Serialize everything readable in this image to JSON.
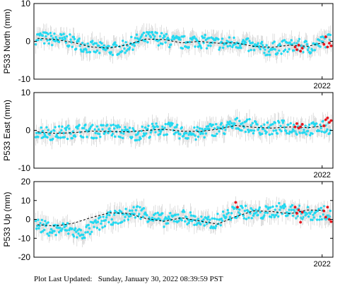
{
  "footer": {
    "label": "Plot Last Updated:",
    "value": "Sunday, January 30, 2022 08:39:59 PST"
  },
  "colors": {
    "points": "#22d8f0",
    "recent_points": "#e8141c",
    "error_bars": "#c9c9c9",
    "trend": "#000000",
    "axes": "#000000"
  },
  "chart_data": [
    {
      "type": "scatter",
      "ylabel": "P533 North (mm)",
      "ylim": [
        -10,
        10
      ],
      "yticks": [
        -10,
        0,
        10
      ],
      "xlim": [
        2014.0,
        2022.3
      ],
      "xticks": [
        {
          "value": 2022.0,
          "label": "2022"
        }
      ],
      "series": [
        {
          "values_desc": "daily position with gray error bars",
          "points": [
            [
              2014.1,
              1.0
            ],
            [
              2014.5,
              0.6
            ],
            [
              2014.9,
              0.3
            ],
            [
              2015.3,
              -0.8
            ],
            [
              2015.7,
              -1.9
            ],
            [
              2016.1,
              -2.2
            ],
            [
              2016.5,
              -1.6
            ],
            [
              2016.9,
              0.3
            ],
            [
              2017.3,
              1.1
            ],
            [
              2017.7,
              0.2
            ],
            [
              2018.1,
              -0.4
            ],
            [
              2018.5,
              0.2
            ],
            [
              2018.9,
              -0.3
            ],
            [
              2019.3,
              -0.7
            ],
            [
              2019.7,
              -0.2
            ],
            [
              2020.1,
              -1.6
            ],
            [
              2020.5,
              -2.1
            ],
            [
              2020.9,
              -1.5
            ],
            [
              2021.3,
              -1.1
            ],
            [
              2021.7,
              -1.6
            ],
            [
              2022.1,
              0.2
            ]
          ]
        },
        {
          "values_desc": "recent points",
          "points": [
            [
              2021.25,
              -1.5
            ],
            [
              2021.3,
              -2.2
            ],
            [
              2021.35,
              -1.0
            ],
            [
              2021.4,
              -2.6
            ],
            [
              2021.45,
              -1.8
            ],
            [
              2022.05,
              -0.8
            ],
            [
              2022.1,
              1.2
            ],
            [
              2022.15,
              -1.5
            ],
            [
              2022.2,
              -0.5
            ],
            [
              2022.25,
              -1.2
            ]
          ]
        }
      ],
      "trend": [
        [
          2014.1,
          0.8
        ],
        [
          2014.6,
          0.5
        ],
        [
          2015.1,
          -0.3
        ],
        [
          2015.6,
          -1.5
        ],
        [
          2016.1,
          -1.8
        ],
        [
          2016.6,
          -0.9
        ],
        [
          2017.1,
          0.6
        ],
        [
          2017.6,
          0.5
        ],
        [
          2018.1,
          -0.4
        ],
        [
          2018.6,
          0.0
        ],
        [
          2019.1,
          -0.5
        ],
        [
          2019.6,
          -0.4
        ],
        [
          2020.1,
          -1.3
        ],
        [
          2020.6,
          -1.6
        ],
        [
          2021.1,
          -1.0
        ],
        [
          2021.6,
          -1.3
        ],
        [
          2022.1,
          -0.2
        ]
      ]
    },
    {
      "type": "scatter",
      "ylabel": "P533 East (mm)",
      "ylim": [
        -10,
        10
      ],
      "yticks": [
        -10,
        0,
        10
      ],
      "xlim": [
        2014.0,
        2022.3
      ],
      "xticks": [
        {
          "value": 2022.0,
          "label": "2022"
        }
      ],
      "series": [
        {
          "values_desc": "daily position with gray error bars",
          "points": [
            [
              2014.1,
              -0.2
            ],
            [
              2014.5,
              -0.8
            ],
            [
              2014.9,
              -0.5
            ],
            [
              2015.3,
              0.0
            ],
            [
              2015.7,
              -0.4
            ],
            [
              2016.1,
              0.2
            ],
            [
              2016.5,
              -0.6
            ],
            [
              2016.9,
              -0.9
            ],
            [
              2017.3,
              0.1
            ],
            [
              2017.7,
              0.5
            ],
            [
              2018.1,
              -0.6
            ],
            [
              2018.5,
              -1.0
            ],
            [
              2018.9,
              0.2
            ],
            [
              2019.3,
              0.5
            ],
            [
              2019.7,
              1.8
            ],
            [
              2020.1,
              0.9
            ],
            [
              2020.5,
              0.3
            ],
            [
              2020.9,
              0.9
            ],
            [
              2021.3,
              0.6
            ],
            [
              2021.7,
              0.4
            ],
            [
              2022.1,
              0.8
            ]
          ]
        },
        {
          "values_desc": "recent points",
          "points": [
            [
              2021.25,
              0.9
            ],
            [
              2021.3,
              1.8
            ],
            [
              2021.35,
              0.6
            ],
            [
              2021.4,
              0.9
            ],
            [
              2021.45,
              1.6
            ],
            [
              2022.05,
              1.2
            ],
            [
              2022.1,
              2.8
            ],
            [
              2022.15,
              3.3
            ],
            [
              2022.2,
              2.1
            ],
            [
              2022.25,
              2.6
            ]
          ]
        }
      ],
      "trend": [
        [
          2014.1,
          -0.4
        ],
        [
          2014.6,
          -0.8
        ],
        [
          2015.1,
          -0.6
        ],
        [
          2015.6,
          -0.2
        ],
        [
          2016.1,
          -0.3
        ],
        [
          2016.6,
          -0.4
        ],
        [
          2017.1,
          0.0
        ],
        [
          2017.6,
          0.3
        ],
        [
          2018.1,
          -0.2
        ],
        [
          2018.6,
          -0.3
        ],
        [
          2019.1,
          0.3
        ],
        [
          2019.6,
          1.3
        ],
        [
          2020.1,
          0.8
        ],
        [
          2020.6,
          0.6
        ],
        [
          2021.1,
          0.9
        ],
        [
          2021.6,
          0.7
        ],
        [
          2022.1,
          1.2
        ]
      ]
    },
    {
      "type": "scatter",
      "ylabel": "P533 Up (mm)",
      "ylim": [
        -20,
        20
      ],
      "yticks": [
        -20,
        -10,
        0,
        10,
        20
      ],
      "xlim": [
        2014.0,
        2022.3
      ],
      "xticks": [
        {
          "value": 2022.0,
          "label": "2022"
        }
      ],
      "series": [
        {
          "values_desc": "daily position with gray error bars",
          "points": [
            [
              2014.1,
              -3.0
            ],
            [
              2014.5,
              -5.5
            ],
            [
              2014.9,
              -4.8
            ],
            [
              2015.3,
              -8.0
            ],
            [
              2015.7,
              -3.5
            ],
            [
              2016.1,
              0.5
            ],
            [
              2016.5,
              1.8
            ],
            [
              2016.9,
              4.5
            ],
            [
              2017.3,
              1.0
            ],
            [
              2017.7,
              -0.8
            ],
            [
              2018.1,
              2.0
            ],
            [
              2018.5,
              -0.5
            ],
            [
              2018.9,
              -2.5
            ],
            [
              2019.3,
              1.5
            ],
            [
              2019.7,
              4.8
            ],
            [
              2020.1,
              2.5
            ],
            [
              2020.5,
              3.8
            ],
            [
              2020.9,
              5.5
            ],
            [
              2021.3,
              4.0
            ],
            [
              2021.7,
              2.8
            ],
            [
              2022.1,
              3.5
            ]
          ]
        },
        {
          "values_desc": "recent points",
          "points": [
            [
              2019.6,
              9.0
            ],
            [
              2019.65,
              6.5
            ],
            [
              2021.25,
              6.5
            ],
            [
              2021.3,
              3.2
            ],
            [
              2021.35,
              5.0
            ],
            [
              2021.4,
              -1.5
            ],
            [
              2021.45,
              3.8
            ],
            [
              2022.05,
              4.5
            ],
            [
              2022.1,
              1.2
            ],
            [
              2022.15,
              6.5
            ],
            [
              2022.2,
              0.0
            ],
            [
              2022.25,
              -1.2
            ]
          ]
        }
      ],
      "trend": [
        [
          2014.1,
          -2.8
        ],
        [
          2014.6,
          -3.5
        ],
        [
          2015.1,
          -2.0
        ],
        [
          2015.6,
          1.0
        ],
        [
          2016.1,
          3.5
        ],
        [
          2016.6,
          3.2
        ],
        [
          2017.1,
          0.5
        ],
        [
          2017.6,
          -1.0
        ],
        [
          2018.1,
          0.8
        ],
        [
          2018.6,
          -0.8
        ],
        [
          2019.1,
          -2.5
        ],
        [
          2019.6,
          1.5
        ],
        [
          2020.1,
          4.5
        ],
        [
          2020.6,
          4.2
        ],
        [
          2021.1,
          3.0
        ],
        [
          2021.6,
          5.0
        ],
        [
          2022.1,
          4.8
        ]
      ]
    }
  ]
}
